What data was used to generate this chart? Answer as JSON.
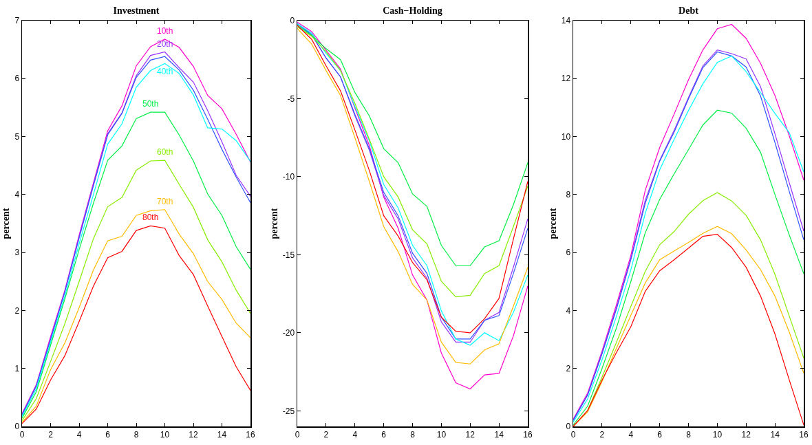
{
  "chart_data": [
    {
      "type": "line",
      "title": "Investment",
      "ylabel": "percent",
      "x": [
        0,
        1,
        2,
        3,
        4,
        5,
        6,
        7,
        8,
        9,
        10,
        11,
        12,
        13,
        14,
        15,
        16
      ],
      "xlim": [
        0,
        16
      ],
      "xticks": [
        0,
        2,
        4,
        6,
        8,
        10,
        12,
        14,
        16
      ],
      "ylim": [
        0,
        7
      ],
      "yticks": [
        0,
        1,
        2,
        3,
        4,
        5,
        6,
        7
      ],
      "grid": false,
      "legend": false,
      "marker": "none",
      "line_style": "solid",
      "series": [
        {
          "name": "10th",
          "color": "#ff00cc",
          "values": [
            0.22,
            0.72,
            1.55,
            2.35,
            3.3,
            4.2,
            5.1,
            5.53,
            6.22,
            6.55,
            6.68,
            6.54,
            6.21,
            5.71,
            5.48,
            5.04,
            4.56
          ]
        },
        {
          "name": "20th",
          "color": "#9933ff",
          "values": [
            0.2,
            0.7,
            1.52,
            2.33,
            3.28,
            4.18,
            5.05,
            5.41,
            6.05,
            6.4,
            6.46,
            6.19,
            5.94,
            5.45,
            4.91,
            4.33,
            3.97
          ]
        },
        {
          "color": "#3355ff",
          "values": [
            0.2,
            0.7,
            1.5,
            2.32,
            3.25,
            4.15,
            5.03,
            5.4,
            6.02,
            6.32,
            6.38,
            6.15,
            5.8,
            5.3,
            4.78,
            4.3,
            3.86
          ]
        },
        {
          "name": "40th",
          "color": "#00ffff",
          "values": [
            0.17,
            0.65,
            1.45,
            2.25,
            3.15,
            4.0,
            4.87,
            5.22,
            5.85,
            6.14,
            6.26,
            6.09,
            5.72,
            5.15,
            5.13,
            4.93,
            4.57
          ]
        },
        {
          "name": "50th",
          "color": "#00ee44",
          "values": [
            0.14,
            0.6,
            1.4,
            2.2,
            3.05,
            3.85,
            4.59,
            4.84,
            5.31,
            5.42,
            5.42,
            5.03,
            4.58,
            4.01,
            3.64,
            3.1,
            2.71
          ]
        },
        {
          "name": "60th",
          "color": "#88ee00",
          "values": [
            0.1,
            0.48,
            1.12,
            1.77,
            2.5,
            3.24,
            3.79,
            3.95,
            4.42,
            4.58,
            4.59,
            4.18,
            3.78,
            3.22,
            2.84,
            2.35,
            1.95
          ]
        },
        {
          "name": "70th",
          "color": "#ffbb00",
          "values": [
            0.07,
            0.35,
            0.98,
            1.44,
            2.05,
            2.7,
            3.2,
            3.28,
            3.64,
            3.72,
            3.74,
            3.32,
            2.98,
            2.5,
            2.19,
            1.78,
            1.53
          ]
        },
        {
          "name": "80th",
          "color": "#ff0000",
          "values": [
            0.05,
            0.3,
            0.8,
            1.22,
            1.81,
            2.42,
            2.91,
            3.02,
            3.38,
            3.46,
            3.42,
            2.95,
            2.62,
            2.08,
            1.55,
            1.03,
            0.62
          ]
        }
      ]
    },
    {
      "type": "line",
      "title": "Cash−Holding",
      "ylabel": "percent",
      "x": [
        0,
        1,
        2,
        3,
        4,
        5,
        6,
        7,
        8,
        9,
        10,
        11,
        12,
        13,
        14,
        15,
        16
      ],
      "xlim": [
        0,
        16
      ],
      "xticks": [
        0,
        2,
        4,
        6,
        8,
        10,
        12,
        14,
        16
      ],
      "ylim": [
        -26,
        0
      ],
      "yticks": [
        -25,
        -20,
        -15,
        -10,
        -5,
        0
      ],
      "grid": false,
      "legend": false,
      "marker": "none",
      "line_style": "solid",
      "series": [
        {
          "color": "#ff00cc",
          "values": [
            -0.1,
            -0.7,
            -1.9,
            -3.1,
            -5.6,
            -8.0,
            -11.3,
            -13.3,
            -16.3,
            -17.9,
            -21.3,
            -23.2,
            -23.6,
            -22.7,
            -22.6,
            -20.2,
            -17.0
          ]
        },
        {
          "color": "#9933ff",
          "values": [
            -0.2,
            -0.9,
            -2.4,
            -3.6,
            -6.1,
            -8.3,
            -11.2,
            -12.7,
            -15.2,
            -16.5,
            -19.3,
            -20.6,
            -20.6,
            -19.2,
            -18.7,
            -15.8,
            -12.7
          ]
        },
        {
          "color": "#3355ff",
          "values": [
            -0.2,
            -0.9,
            -2.4,
            -3.6,
            -6.0,
            -8.2,
            -11.0,
            -12.5,
            -14.9,
            -16.2,
            -19.0,
            -20.4,
            -20.4,
            -19.2,
            -18.9,
            -16.2,
            -13.3
          ]
        },
        {
          "color": "#00ffff",
          "values": [
            -0.2,
            -0.8,
            -2.1,
            -3.2,
            -5.5,
            -7.7,
            -10.5,
            -12.0,
            -14.4,
            -15.7,
            -18.6,
            -20.4,
            -20.8,
            -20.0,
            -20.5,
            -18.7,
            -16.3
          ]
        },
        {
          "color": "#00ee44",
          "values": [
            -0.3,
            -0.95,
            -1.8,
            -2.5,
            -4.6,
            -6.1,
            -8.2,
            -9.1,
            -11.1,
            -11.9,
            -14.4,
            -15.7,
            -15.7,
            -14.5,
            -14.1,
            -11.8,
            -9.1
          ]
        },
        {
          "color": "#88ee00",
          "values": [
            -0.4,
            -1.0,
            -2.0,
            -3.2,
            -5.3,
            -7.6,
            -10.0,
            -11.3,
            -13.4,
            -14.3,
            -16.7,
            -17.7,
            -17.6,
            -16.2,
            -15.7,
            -13.2,
            -10.6
          ]
        },
        {
          "color": "#ffbb00",
          "values": [
            -0.5,
            -1.5,
            -3.2,
            -4.8,
            -7.5,
            -10.3,
            -13.2,
            -14.8,
            -16.9,
            -17.9,
            -20.6,
            -21.9,
            -22.0,
            -21.1,
            -20.7,
            -18.3,
            -15.8
          ]
        },
        {
          "color": "#ff0000",
          "values": [
            -0.3,
            -1.2,
            -2.9,
            -4.5,
            -7.0,
            -9.6,
            -12.5,
            -13.8,
            -15.5,
            -16.6,
            -19.0,
            -19.9,
            -20.0,
            -19.1,
            -17.8,
            -14.0,
            -10.3
          ]
        }
      ]
    },
    {
      "type": "line",
      "title": "Debt",
      "ylabel": "percent",
      "x": [
        0,
        1,
        2,
        3,
        4,
        5,
        6,
        7,
        8,
        9,
        10,
        11,
        12,
        13,
        14,
        15,
        16
      ],
      "xlim": [
        0,
        16
      ],
      "xticks": [
        0,
        2,
        4,
        6,
        8,
        10,
        12,
        14,
        16
      ],
      "ylim": [
        0,
        14
      ],
      "yticks": [
        0,
        2,
        4,
        6,
        8,
        10,
        12,
        14
      ],
      "grid": false,
      "legend": false,
      "marker": "none",
      "line_style": "solid",
      "series": [
        {
          "color": "#ff00cc",
          "values": [
            0.25,
            1.15,
            2.6,
            4.2,
            5.9,
            8.15,
            9.62,
            10.77,
            11.96,
            12.99,
            13.72,
            13.87,
            13.39,
            12.53,
            11.42,
            10.02,
            8.5
          ]
        },
        {
          "color": "#9933ff",
          "values": [
            0.22,
            1.1,
            2.55,
            4.1,
            5.8,
            7.8,
            9.18,
            10.21,
            11.35,
            12.44,
            12.99,
            12.86,
            12.68,
            11.72,
            10.1,
            8.4,
            6.74
          ]
        },
        {
          "color": "#3355ff",
          "values": [
            0.2,
            1.08,
            2.5,
            4.05,
            5.75,
            7.7,
            9.15,
            10.15,
            11.3,
            12.38,
            12.92,
            12.78,
            12.4,
            11.4,
            9.8,
            8.1,
            6.44
          ]
        },
        {
          "color": "#00ffff",
          "values": [
            0.15,
            0.95,
            2.3,
            3.8,
            5.4,
            7.35,
            8.85,
            9.9,
            10.9,
            11.82,
            12.56,
            12.78,
            12.24,
            11.52,
            10.8,
            10.13,
            8.78
          ]
        },
        {
          "color": "#00ee44",
          "values": [
            0.05,
            0.7,
            2.0,
            3.4,
            5.0,
            6.68,
            7.83,
            8.71,
            9.55,
            10.4,
            10.91,
            10.81,
            10.29,
            9.46,
            8.0,
            6.6,
            5.27
          ]
        },
        {
          "color": "#88ee00",
          "values": [
            0.0,
            0.55,
            1.7,
            2.9,
            4.14,
            5.35,
            6.27,
            6.72,
            7.32,
            7.79,
            8.07,
            7.78,
            7.28,
            6.44,
            5.25,
            3.8,
            2.36
          ]
        },
        {
          "color": "#ffbb00",
          "values": [
            0.0,
            0.5,
            1.55,
            2.7,
            3.83,
            4.95,
            5.75,
            6.05,
            6.35,
            6.66,
            6.9,
            6.65,
            6.09,
            5.41,
            4.5,
            3.25,
            1.84
          ]
        },
        {
          "color": "#ff0000",
          "values": [
            0.0,
            0.55,
            1.6,
            2.55,
            3.44,
            4.66,
            5.37,
            5.75,
            6.15,
            6.56,
            6.63,
            6.17,
            5.49,
            4.5,
            3.19,
            1.6,
            0.05
          ]
        }
      ]
    }
  ]
}
